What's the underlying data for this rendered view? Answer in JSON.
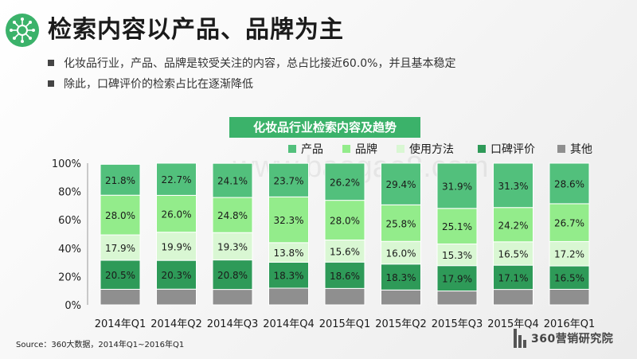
{
  "page": {
    "title": "检索内容以产品、品牌为主",
    "bullets": [
      "化妆品行业，产品、品牌是较受关注的内容，总占比接近60.0%，并且基本稳定",
      "除此，口碑评价的检索占比在逐渐降低"
    ],
    "source": "Source：360大数据，2014年Q1~2016年Q1",
    "brand": "360营销研究院",
    "watermark": "www.baogao8.com"
  },
  "chart_data": {
    "type": "bar",
    "stacked": true,
    "title": "化妆品行业检索内容及趋势",
    "categories": [
      "2014年Q1",
      "2014年Q2",
      "2014年Q3",
      "2014年Q4",
      "2015年Q1",
      "2015年Q2",
      "2015年Q3",
      "2015年Q4",
      "2016年Q1"
    ],
    "ylim": [
      0,
      100
    ],
    "yticks": [
      "0%",
      "20%",
      "40%",
      "60%",
      "80%",
      "100%"
    ],
    "legend_position": "top",
    "series": [
      {
        "name": "其他",
        "color": "#8f8f8f",
        "values": [
          11.0,
          11.1,
          10.9,
          11.8,
          11.6,
          10.5,
          9.8,
          10.9,
          11.0
        ]
      },
      {
        "name": "口碑评价",
        "color": "#2e9a58",
        "values": [
          20.5,
          20.3,
          20.8,
          18.3,
          18.6,
          18.3,
          17.9,
          17.1,
          16.5
        ],
        "labels": [
          "20.5%",
          "20.3%",
          "20.8%",
          "18.3%",
          "18.6%",
          "18.3%",
          "17.9%",
          "17.1%",
          "16.5%"
        ]
      },
      {
        "name": "使用方法",
        "color": "#d9f7d3",
        "values": [
          17.9,
          19.9,
          19.3,
          13.8,
          15.6,
          16.0,
          15.3,
          16.5,
          17.2
        ],
        "labels": [
          "17.9%",
          "19.9%",
          "19.3%",
          "13.8%",
          "15.6%",
          "16.0%",
          "15.3%",
          "16.5%",
          "17.2%"
        ]
      },
      {
        "name": "品牌",
        "color": "#93ec8b",
        "values": [
          28.0,
          26.0,
          24.8,
          32.3,
          28.0,
          25.8,
          25.1,
          24.2,
          26.7
        ],
        "labels": [
          "28.0%",
          "26.0%",
          "24.8%",
          "32.3%",
          "28.0%",
          "25.8%",
          "25.1%",
          "24.2%",
          "26.7%"
        ]
      },
      {
        "name": "产品",
        "color": "#52c07c",
        "values": [
          21.8,
          22.7,
          24.1,
          23.7,
          26.2,
          29.4,
          31.9,
          31.3,
          28.6
        ],
        "labels": [
          "21.8%",
          "22.7%",
          "24.1%",
          "23.7%",
          "26.2%",
          "29.4%",
          "31.9%",
          "31.3%",
          "28.6%"
        ]
      }
    ],
    "legend_order": [
      "产品",
      "品牌",
      "使用方法",
      "口碑评价",
      "其他"
    ]
  }
}
